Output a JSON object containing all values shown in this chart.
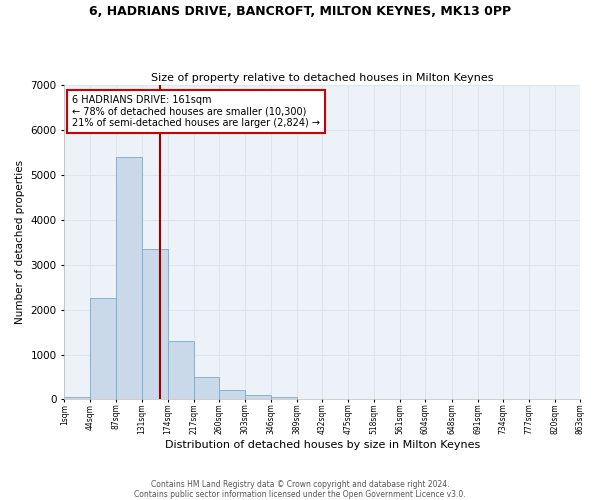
{
  "title": "6, HADRIANS DRIVE, BANCROFT, MILTON KEYNES, MK13 0PP",
  "subtitle": "Size of property relative to detached houses in Milton Keynes",
  "xlabel": "Distribution of detached houses by size in Milton Keynes",
  "ylabel": "Number of detached properties",
  "footer_line1": "Contains HM Land Registry data © Crown copyright and database right 2024.",
  "footer_line2": "Contains public sector information licensed under the Open Government Licence v3.0.",
  "annotation_title": "6 HADRIANS DRIVE: 161sqm",
  "annotation_line1": "← 78% of detached houses are smaller (10,300)",
  "annotation_line2": "21% of semi-detached houses are larger (2,824) →",
  "property_size": 161,
  "bin_edges": [
    1,
    44,
    87,
    131,
    174,
    217,
    260,
    303,
    346,
    389,
    432,
    475,
    518,
    561,
    604,
    648,
    691,
    734,
    777,
    820,
    863
  ],
  "bar_values": [
    50,
    2250,
    5400,
    3350,
    1300,
    500,
    200,
    100,
    60,
    20,
    5,
    0,
    0,
    0,
    0,
    0,
    0,
    0,
    0,
    0
  ],
  "bar_color": "#c9d9e9",
  "bar_edge_color": "#7aaac8",
  "vline_color": "#990000",
  "annotation_box_color": "#cc0000",
  "grid_color": "#dde5f0",
  "bg_color": "#edf1f8",
  "ylim": [
    0,
    7000
  ],
  "yticks": [
    0,
    1000,
    2000,
    3000,
    4000,
    5000,
    6000,
    7000
  ],
  "title_fontsize": 9,
  "subtitle_fontsize": 8,
  "ylabel_fontsize": 7.5,
  "xlabel_fontsize": 8,
  "footer_fontsize": 5.5
}
